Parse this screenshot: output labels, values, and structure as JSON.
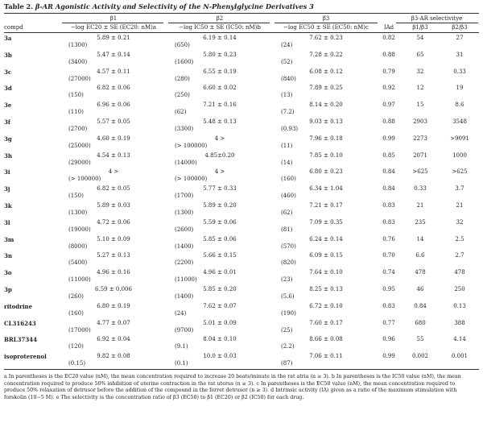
{
  "title": {
    "label": "Table 2.",
    "text": "β-AR Agonistic Activity and Selectivity of the N-Phenylglycine Derivatives 3"
  },
  "headers": {
    "compd": "compd",
    "beta1_group": "β1",
    "beta1_col": "−log EC20 ± SE (EC20: nM)a",
    "beta2_group": "β2",
    "beta2_col": "−log IC50 ± SE (IC50: nM)b",
    "beta3_group": "β3",
    "beta3_col": "−log EC50 ± SE (EC50: nM)c",
    "ia": "IAd",
    "sel_group": "β3-AR selectivitye",
    "sel1": "β1/β3",
    "sel2": "β2/β3"
  },
  "rows": [
    {
      "compd": "3a",
      "b1": "5.89 ± 0.21",
      "b1n": "(1300)",
      "b2": "6.19 ± 0.14",
      "b2n": "(650)",
      "b3": "7.62 ± 0.23",
      "b3n": "(24)",
      "ia": "0.82",
      "s1": "54",
      "s2": "27"
    },
    {
      "compd": "3b",
      "b1": "5.47 ± 0.14",
      "b1n": "(3400)",
      "b2": "5.80 ± 0.23",
      "b2n": "(1600)",
      "b3": "7.28 ± 0.22",
      "b3n": "(52)",
      "ia": "0.88",
      "s1": "65",
      "s2": "31"
    },
    {
      "compd": "3c",
      "b1": "4.57 ± 0.11",
      "b1n": "(27000)",
      "b2": "6.55 ± 0.19",
      "b2n": "(280)",
      "b3": "6.08 ± 0.12",
      "b3n": "(840)",
      "ia": "0.79",
      "s1": "32",
      "s2": "0.33"
    },
    {
      "compd": "3d",
      "b1": "6.82 ± 0.06",
      "b1n": "(150)",
      "b2": "6.60 ± 0.02",
      "b2n": "(250)",
      "b3": "7.89 ± 0.25",
      "b3n": "(13)",
      "ia": "0.92",
      "s1": "12",
      "s2": "19"
    },
    {
      "compd": "3e",
      "b1": "6.96 ± 0.06",
      "b1n": "(110)",
      "b2": "7.21 ± 0.16",
      "b2n": "(62)",
      "b3": "8.14 ± 0.20",
      "b3n": "(7.2)",
      "ia": "0.97",
      "s1": "15",
      "s2": "8.6"
    },
    {
      "compd": "3f",
      "b1": "5.57 ± 0.05",
      "b1n": "(2700)",
      "b2": "5.48 ± 0.13",
      "b2n": "(3300)",
      "b3": "9.03 ± 0.13",
      "b3n": "(0.93)",
      "ia": "0.88",
      "s1": "2903",
      "s2": "3548"
    },
    {
      "compd": "3g",
      "b1": "4.60 ± 0.19",
      "b1n": "(25000)",
      "b2": "4 >",
      "b2n": "(> 100000)",
      "b3": "7.96 ± 0.18",
      "b3n": "(11)",
      "ia": "0.99",
      "s1": "2273",
      "s2": ">9091"
    },
    {
      "compd": "3h",
      "b1": "4.54 ± 0.13",
      "b1n": "(29000)",
      "b2": "4.85±0.20",
      "b2n": "(14000)",
      "b3": "7.85 ± 0.10",
      "b3n": "(14)",
      "ia": "0.85",
      "s1": "2071",
      "s2": "1000"
    },
    {
      "compd": "3i",
      "b1": "4 >",
      "b1n": "(> 100000)",
      "b2": "4 >",
      "b2n": "(> 100000)",
      "b3": "6.80 ± 0.23",
      "b3n": "(160)",
      "ia": "0.84",
      "s1": ">625",
      "s2": ">625"
    },
    {
      "compd": "3j",
      "b1": "6.82 ± 0.05",
      "b1n": "(150)",
      "b2": "5.77 ± 0.33",
      "b2n": "(1700)",
      "b3": "6.34 ± 1.04",
      "b3n": "(460)",
      "ia": "0.84",
      "s1": "0.33",
      "s2": "3.7"
    },
    {
      "compd": "3k",
      "b1": "5.89 ± 0.03",
      "b1n": "(1300)",
      "b2": "5.89 ± 0.20",
      "b2n": "(1300)",
      "b3": "7.21 ± 0.17",
      "b3n": "(62)",
      "ia": "0.83",
      "s1": "21",
      "s2": "21"
    },
    {
      "compd": "3l",
      "b1": "4.72 ± 0.06",
      "b1n": "(19000)",
      "b2": "5.59 ± 0.06",
      "b2n": "(2600)",
      "b3": "7.09 ± 0.35",
      "b3n": "(81)",
      "ia": "0.83",
      "s1": "235",
      "s2": "32"
    },
    {
      "compd": "3m",
      "b1": "5.10 ± 0.09",
      "b1n": "(8000)",
      "b2": "5.85 ± 0.06",
      "b2n": "(1400)",
      "b3": "6.24 ± 0.14",
      "b3n": "(570)",
      "ia": "0.76",
      "s1": "14",
      "s2": "2.5"
    },
    {
      "compd": "3n",
      "b1": "5.27 ± 0.13",
      "b1n": "(5400)",
      "b2": "5.66 ± 0.15",
      "b2n": "(2200)",
      "b3": "6.09 ± 0.15",
      "b3n": "(820)",
      "ia": "0.70",
      "s1": "6.6",
      "s2": "2.7"
    },
    {
      "compd": "3o",
      "b1": "4.96 ± 0.16",
      "b1n": "(11000)",
      "b2": "4.96 ± 0.01",
      "b2n": "(11000)",
      "b3": "7.64 ± 0.10",
      "b3n": "(23)",
      "ia": "0.74",
      "s1": "478",
      "s2": "478"
    },
    {
      "compd": "3p",
      "b1": "6.59 ± 0.006",
      "b1n": "(260)",
      "b2": "5.85 ± 0.20",
      "b2n": "(1400)",
      "b3": "8.25 ± 0.13",
      "b3n": "(5.6)",
      "ia": "0.95",
      "s1": "46",
      "s2": "250"
    },
    {
      "compd": "ritodrine",
      "b1": "6.80 ± 0.19",
      "b1n": "(160)",
      "b2": "7.62 ± 0.07",
      "b2n": "(24)",
      "b3": "6.72 ± 0.10",
      "b3n": "(190)",
      "ia": "0.83",
      "s1": "0.84",
      "s2": "0.13"
    },
    {
      "compd": "CL316243",
      "b1": "4.77 ± 0.07",
      "b1n": "(17000)",
      "b2": "5.01 ± 0.09",
      "b2n": "(9700)",
      "b3": "7.60 ± 0.17",
      "b3n": "(25)",
      "ia": "0.77",
      "s1": "680",
      "s2": "388"
    },
    {
      "compd": "BRL37344",
      "b1": "6.92 ± 0.04",
      "b1n": "(120)",
      "b2": "8.04 ± 0.10",
      "b2n": "(9.1)",
      "b3": "8.66 ± 0.08",
      "b3n": "(2.2)",
      "ia": "0.96",
      "s1": "55",
      "s2": "4.14"
    },
    {
      "compd": "isoproterenol",
      "b1": "9.82 ± 0.08",
      "b1n": "(0.15)",
      "b2": "10.0 ± 0.03",
      "b2n": "(0.1)",
      "b3": "7.06 ± 0.11",
      "b3n": "(87)",
      "ia": "0.99",
      "s1": "0.002",
      "s2": "0.001"
    }
  ],
  "footnotes": [
    "a In parentheses is the EC20 value (nM), the mean concentration required to increase 20 beats/minute in the rat atria (n ≥ 3). b In parentheses is the IC50 value (nM), the mean concentration required to produce 50% inhibition of uterine contraction in the rat uterus (n ≥ 3). c In parentheses is the EC50 value (nM), the mean concentration required to produce 50% relaxation of detrusor before the addition of the compound in the ferret detrusor (n ≥ 3). d Intrinsic activity (IA) given as a ratio of the maximum stimulation with forskolin (10−5 M). e The selectivity is the concentration ratio of β3 (EC50) to β1 (EC20) or β2 (IC50) for each drug."
  ]
}
